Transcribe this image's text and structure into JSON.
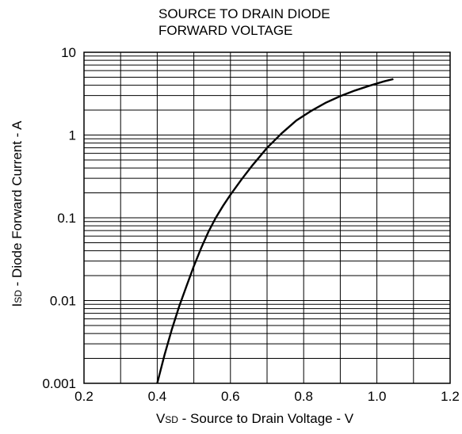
{
  "chart_data": {
    "type": "line",
    "title_lines": [
      "SOURCE TO DRAIN DIODE",
      "FORWARD VOLTAGE"
    ],
    "xlabel": {
      "prefix": "V",
      "subscript": "SD",
      "rest": " - Source to Drain Voltage - V"
    },
    "ylabel": {
      "prefix": "I",
      "subscript": "SD",
      "rest": " - Diode Forward Current - A"
    },
    "xlim": [
      0.2,
      1.2
    ],
    "ylim": [
      0.001,
      10
    ],
    "yscale": "log",
    "xticks": [
      "0.2",
      "0.4",
      "0.6",
      "0.8",
      "1.0",
      "1.2"
    ],
    "xtick_values": [
      0.2,
      0.4,
      0.6,
      0.8,
      1.0,
      1.2
    ],
    "yticks": [
      "0.001",
      "0.01",
      "0.1",
      "1",
      "10"
    ],
    "ytick_values": [
      0.001,
      0.01,
      0.1,
      1,
      10
    ],
    "grid": true,
    "series": [
      {
        "x": [
          0.4,
          0.42,
          0.44,
          0.46,
          0.48,
          0.5,
          0.52,
          0.54,
          0.56,
          0.58,
          0.6,
          0.63,
          0.66,
          0.7,
          0.74,
          0.78,
          0.82,
          0.86,
          0.9,
          0.94,
          0.98,
          1.02,
          1.045
        ],
        "y": [
          0.001,
          0.0022,
          0.0045,
          0.0085,
          0.015,
          0.026,
          0.043,
          0.068,
          0.1,
          0.14,
          0.19,
          0.29,
          0.43,
          0.7,
          1.05,
          1.5,
          1.95,
          2.45,
          2.95,
          3.45,
          3.95,
          4.45,
          4.75
        ]
      }
    ]
  }
}
